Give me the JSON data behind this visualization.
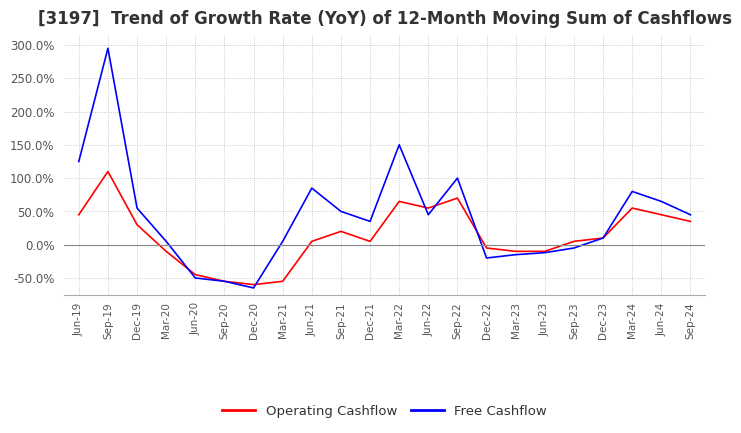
{
  "title": "[3197]  Trend of Growth Rate (YoY) of 12-Month Moving Sum of Cashflows",
  "title_fontsize": 12,
  "ylim": [
    -75,
    315
  ],
  "yticks": [
    -50,
    0,
    50,
    100,
    150,
    200,
    250,
    300
  ],
  "background_color": "#ffffff",
  "grid_color": "#bbbbbb",
  "operating_color": "#ff0000",
  "free_color": "#0000ff",
  "x_labels": [
    "Jun-19",
    "Sep-19",
    "Dec-19",
    "Mar-20",
    "Jun-20",
    "Sep-20",
    "Dec-20",
    "Mar-21",
    "Jun-21",
    "Sep-21",
    "Dec-21",
    "Mar-22",
    "Jun-22",
    "Sep-22",
    "Dec-22",
    "Mar-23",
    "Jun-23",
    "Sep-23",
    "Dec-23",
    "Mar-24",
    "Jun-24",
    "Sep-24"
  ],
  "operating_cashflow": [
    45,
    110,
    30,
    -10,
    -45,
    -55,
    -60,
    -55,
    5,
    20,
    5,
    65,
    55,
    70,
    -5,
    -10,
    -10,
    5,
    10,
    55,
    45,
    35
  ],
  "free_cashflow": [
    125,
    295,
    55,
    5,
    -50,
    -55,
    -65,
    5,
    85,
    50,
    35,
    150,
    45,
    100,
    -20,
    -15,
    -12,
    -5,
    10,
    80,
    65,
    45
  ]
}
